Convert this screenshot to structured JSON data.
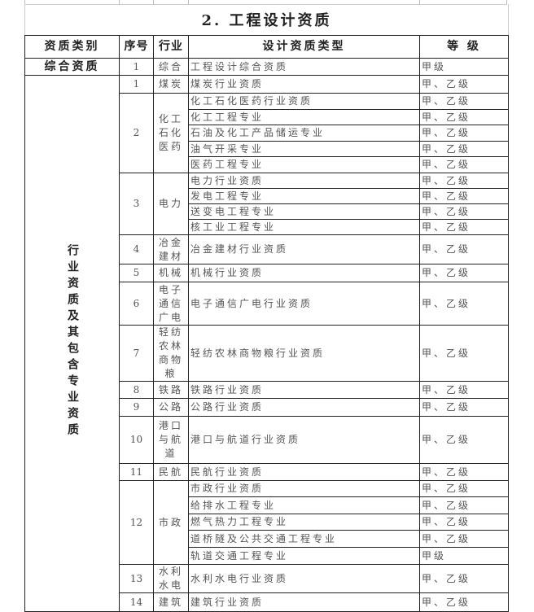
{
  "title": "2. 工程设计资质",
  "headers": [
    "资质类别",
    "序号",
    "行业",
    "设计资质类型",
    "等 级"
  ],
  "comprehensive": {
    "category": "综合资质",
    "seq": "1",
    "industry": "综合",
    "type": "工程设计综合资质",
    "grade": "甲级"
  },
  "industry_category": "行业资质及其包含专业资质",
  "groups": [
    {
      "seq": "1",
      "industry": "煤炭",
      "items": [
        {
          "type": "煤炭行业资质",
          "grade": "甲、乙级"
        }
      ]
    },
    {
      "seq": "2",
      "industry": "化工石化医药",
      "items": [
        {
          "type": "化工石化医药行业资质",
          "grade": "甲、乙级"
        },
        {
          "type": "化工工程专业",
          "grade": "甲、乙级"
        },
        {
          "type": "石油及化工产品储运专业",
          "grade": "甲、乙级"
        },
        {
          "type": "油气开采专业",
          "grade": "甲、乙级"
        },
        {
          "type": "医药工程专业",
          "grade": "甲、乙级"
        }
      ]
    },
    {
      "seq": "3",
      "industry": "电力",
      "items": [
        {
          "type": "电力行业资质",
          "grade": "甲、乙级"
        },
        {
          "type": "发电工程专业",
          "grade": "甲、乙级"
        },
        {
          "type": "送变电工程专业",
          "grade": "甲、乙级"
        },
        {
          "type": "核工业工程专业",
          "grade": "甲、乙级"
        }
      ]
    },
    {
      "seq": "4",
      "industry": "冶金建材",
      "items": [
        {
          "type": "冶金建材行业资质",
          "grade": "甲、乙级"
        }
      ]
    },
    {
      "seq": "5",
      "industry": "机械",
      "items": [
        {
          "type": "机械行业资质",
          "grade": "甲、乙级"
        }
      ]
    },
    {
      "seq": "6",
      "industry": "电子通信广电",
      "items": [
        {
          "type": "电子通信广电行业资质",
          "grade": "甲、乙级"
        }
      ]
    },
    {
      "seq": "7",
      "industry": "轻纺农林商物粮",
      "items": [
        {
          "type": "轻纺农林商物粮行业资质",
          "grade": "甲、乙级"
        }
      ]
    },
    {
      "seq": "8",
      "industry": "铁路",
      "items": [
        {
          "type": "铁路行业资质",
          "grade": "甲、乙级"
        }
      ]
    },
    {
      "seq": "9",
      "industry": "公路",
      "items": [
        {
          "type": "公路行业资质",
          "grade": "甲、乙级"
        }
      ]
    },
    {
      "seq": "10",
      "industry": "港口与航道",
      "items": [
        {
          "type": "港口与航道行业资质",
          "grade": "甲、乙级"
        }
      ]
    },
    {
      "seq": "11",
      "industry": "民航",
      "items": [
        {
          "type": "民航行业资质",
          "grade": "甲、乙级"
        }
      ]
    },
    {
      "seq": "12",
      "industry": "市政",
      "items": [
        {
          "type": "市政行业资质",
          "grade": "甲、乙级"
        },
        {
          "type": "给排水工程专业",
          "grade": "甲、乙级"
        },
        {
          "type": "燃气热力工程专业",
          "grade": "甲、乙级"
        },
        {
          "type": "道桥隧及公共交通工程专业",
          "grade": "甲、乙级"
        },
        {
          "type": "轨道交通工程专业",
          "grade": "甲级"
        }
      ]
    },
    {
      "seq": "13",
      "industry": "水利水电",
      "items": [
        {
          "type": "水利水电行业资质",
          "grade": "甲、乙级"
        }
      ]
    },
    {
      "seq": "14",
      "industry": "建筑",
      "items": [
        {
          "type": "建筑行业资质",
          "grade": "甲、乙级"
        }
      ]
    }
  ]
}
